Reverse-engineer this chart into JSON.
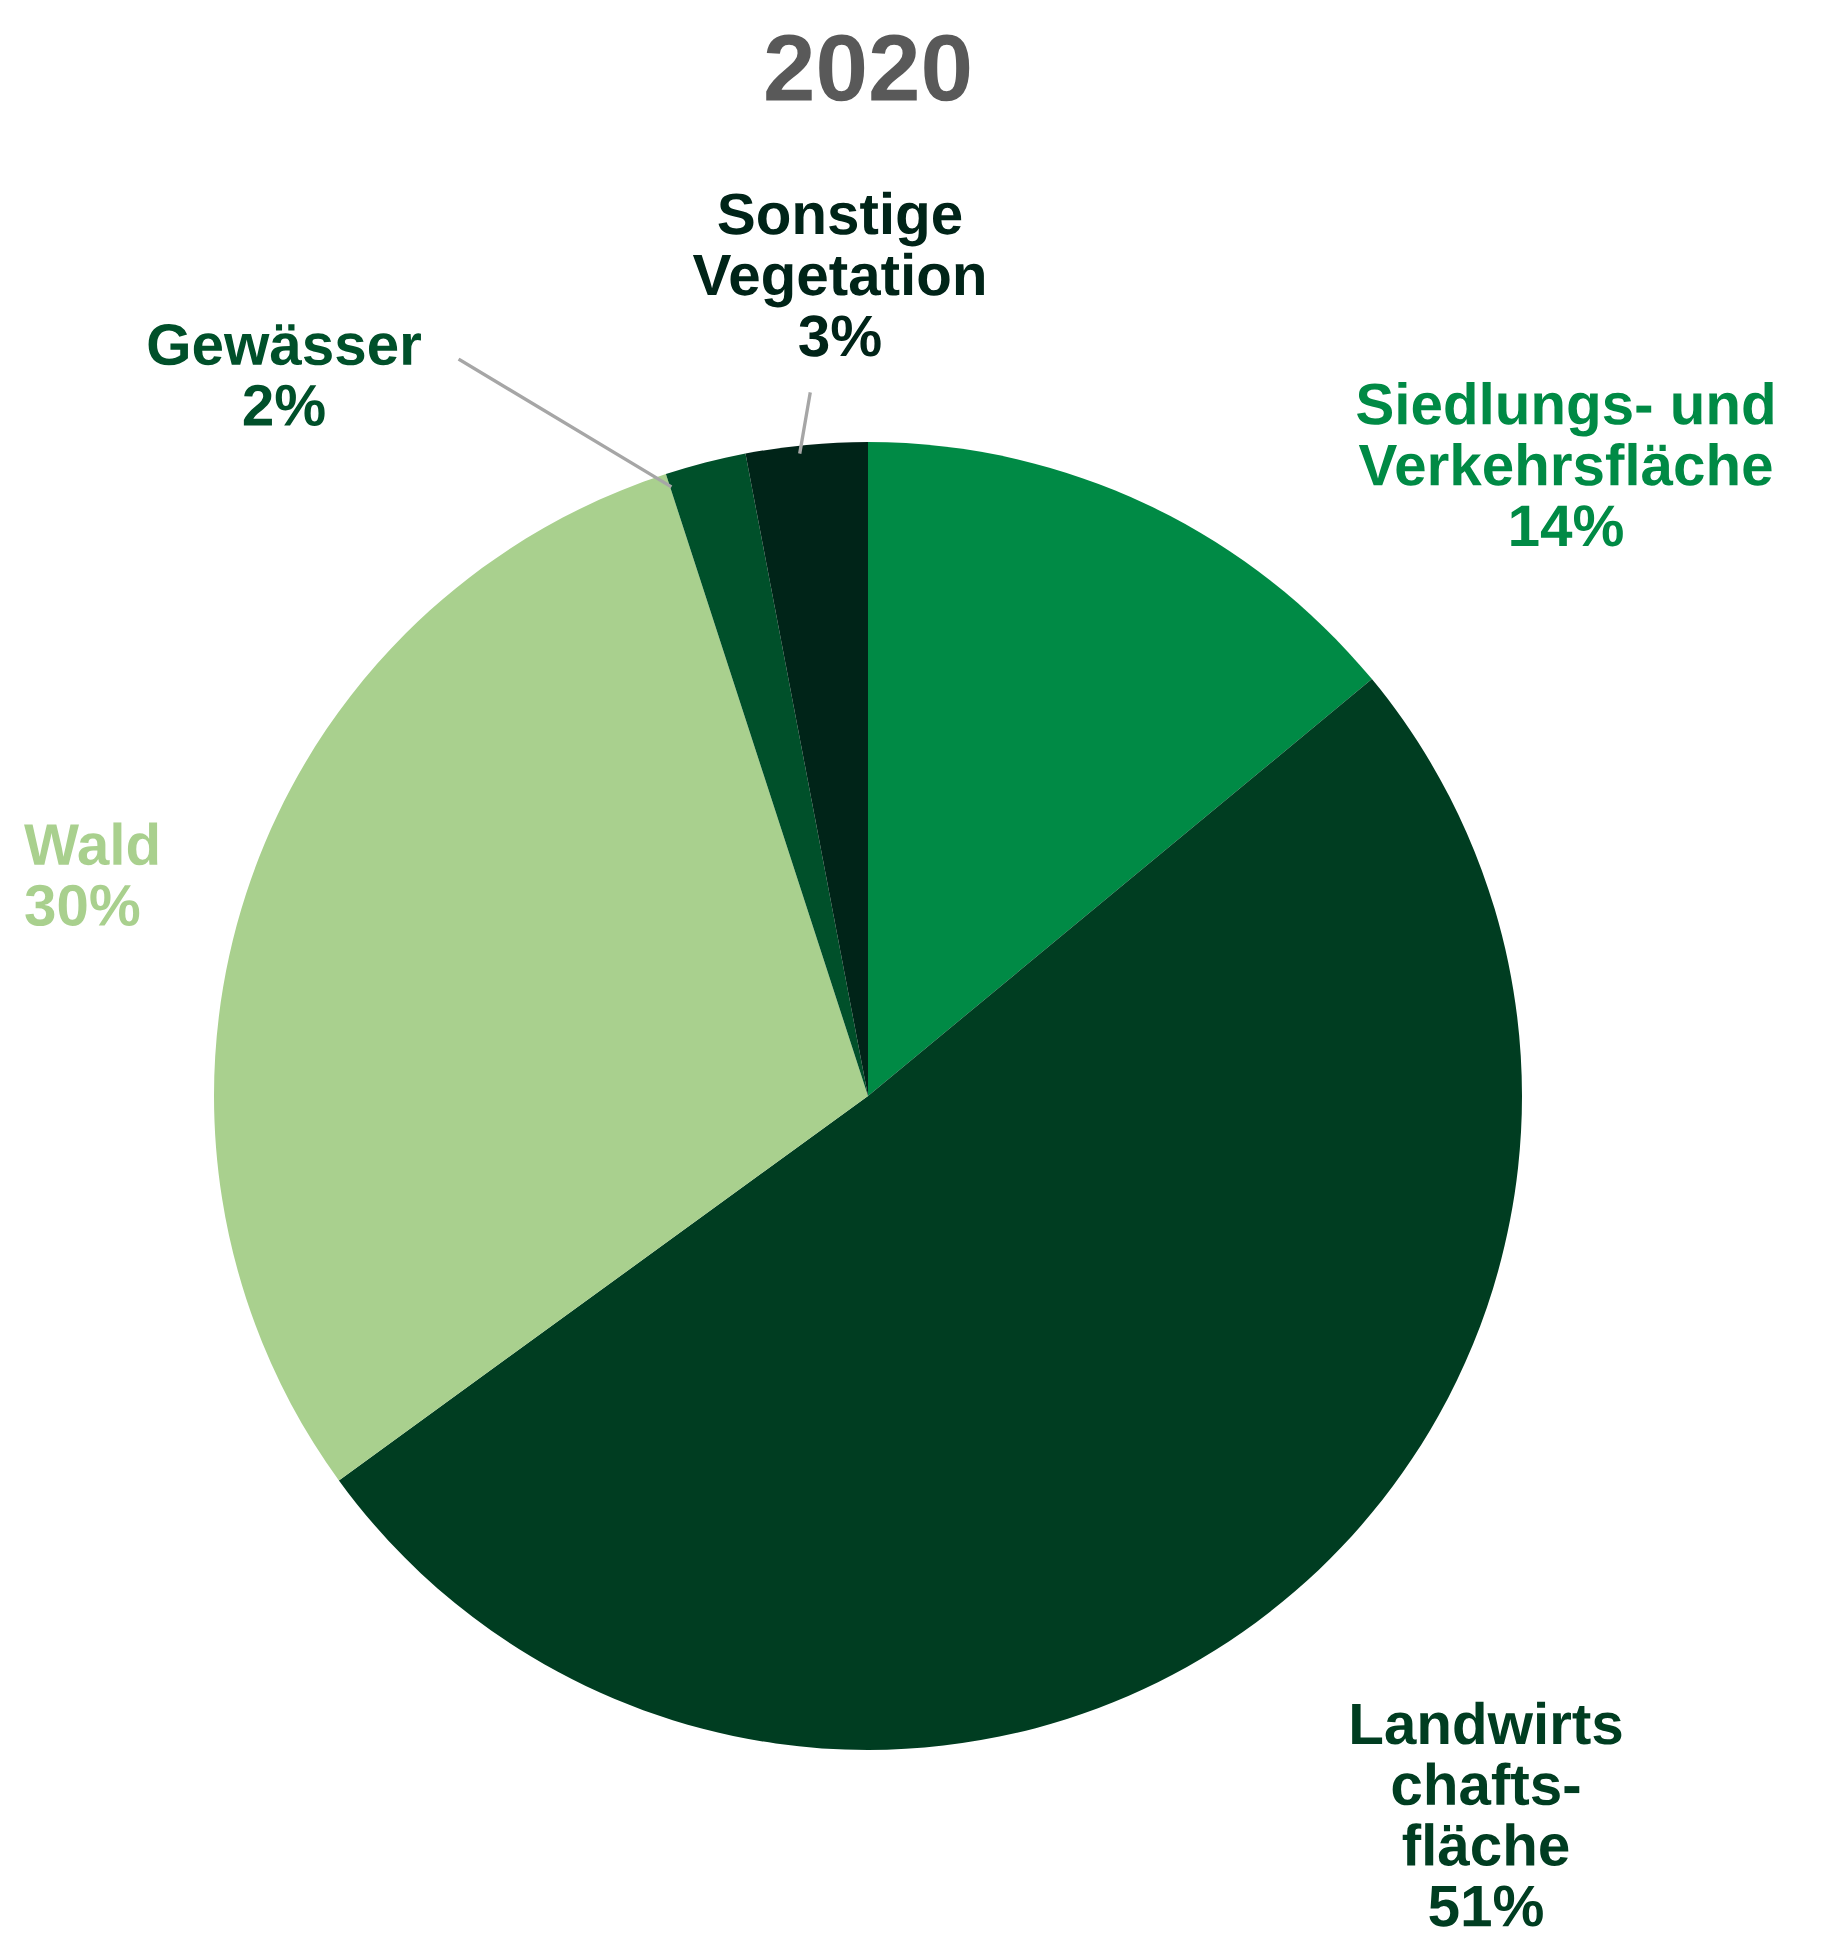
{
  "chart_data": {
    "type": "pie",
    "title": "2020",
    "categories": [
      "Siedlungs- und\nVerkehrsfläche",
      "Landwirts\nchafts-\nfläche",
      "Wald",
      "Gewässer",
      "Sonstige\nVegetation"
    ],
    "values": [
      14,
      51,
      30,
      2,
      3
    ],
    "value_labels": [
      "14%",
      "51%",
      "30%",
      "2%",
      "3%"
    ],
    "colors": [
      "#008a45",
      "#003d21",
      "#a9d08e",
      "#00502a",
      "#002418"
    ],
    "legend": false
  }
}
